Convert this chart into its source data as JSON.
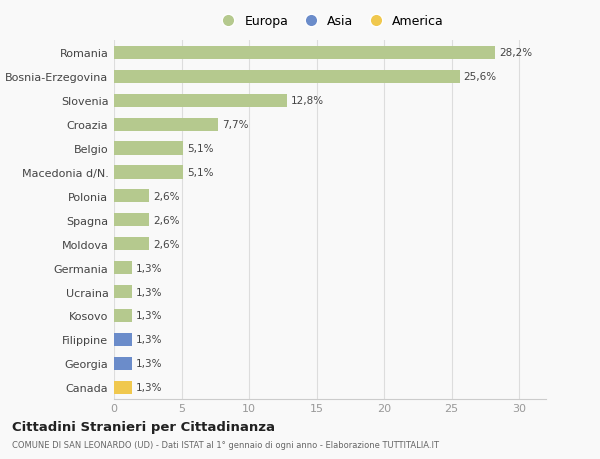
{
  "countries": [
    "Romania",
    "Bosnia-Erzegovina",
    "Slovenia",
    "Croazia",
    "Belgio",
    "Macedonia d/N.",
    "Polonia",
    "Spagna",
    "Moldova",
    "Germania",
    "Ucraina",
    "Kosovo",
    "Filippine",
    "Georgia",
    "Canada"
  ],
  "values": [
    28.2,
    25.6,
    12.8,
    7.7,
    5.1,
    5.1,
    2.6,
    2.6,
    2.6,
    1.3,
    1.3,
    1.3,
    1.3,
    1.3,
    1.3
  ],
  "labels": [
    "28,2%",
    "25,6%",
    "12,8%",
    "7,7%",
    "5,1%",
    "5,1%",
    "2,6%",
    "2,6%",
    "2,6%",
    "1,3%",
    "1,3%",
    "1,3%",
    "1,3%",
    "1,3%",
    "1,3%"
  ],
  "continents": [
    "Europa",
    "Europa",
    "Europa",
    "Europa",
    "Europa",
    "Europa",
    "Europa",
    "Europa",
    "Europa",
    "Europa",
    "Europa",
    "Europa",
    "Asia",
    "Asia",
    "America"
  ],
  "colors": {
    "Europa": "#b5c98e",
    "Asia": "#6b8cca",
    "America": "#f0c84e"
  },
  "xlim": [
    0,
    32
  ],
  "xticks": [
    0,
    5,
    10,
    15,
    20,
    25,
    30
  ],
  "background_color": "#f9f9f9",
  "title": "Cittadini Stranieri per Cittadinanza",
  "subtitle": "COMUNE DI SAN LEONARDO (UD) - Dati ISTAT al 1° gennaio di ogni anno - Elaborazione TUTTITALIA.IT",
  "legend_labels": [
    "Europa",
    "Asia",
    "America"
  ],
  "bar_height": 0.55,
  "label_fontsize": 7.5,
  "ytick_fontsize": 8,
  "xtick_fontsize": 8
}
